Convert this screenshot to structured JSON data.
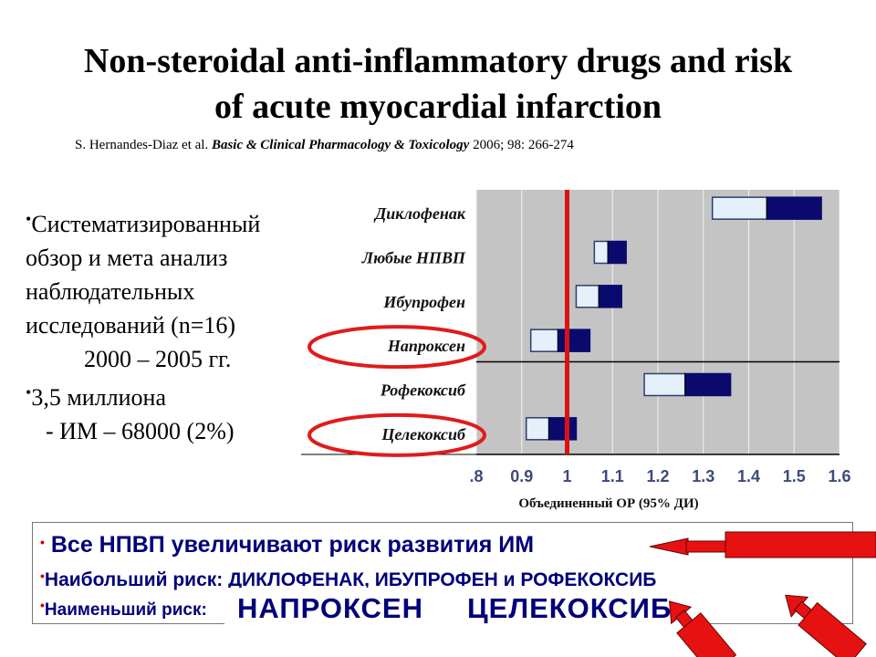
{
  "title_line1": "Non-steroidal anti-inflammatory drugs and risk",
  "title_line2": "of acute myocardial infarction",
  "citation": {
    "authors": "S. Hernandes-Diaz et al.",
    "journal": "Basic & Clinical Pharmacology & Toxicology",
    "details": "2006; 98: 266-274"
  },
  "bullets": {
    "b1_line1": "Систематизированный",
    "b1_line2": "обзор и мета анализ",
    "b1_line3": "наблюдательных",
    "b1_line4": "исследований (n=16)",
    "b1_line5": "2000 – 2005 гг.",
    "b2_line1": "3,5 миллиона",
    "b2_line2": "- ИМ – 68000 (2%)"
  },
  "summary": {
    "line1": "Все НПВП увеличивают риск развития ИМ",
    "line2": "Наибольший риск: ДИКЛОФЕНАК, ИБУПРОФЕН и РОФЕКОКСИБ",
    "line3": "Наименьший риск:",
    "highlight1": "НАПРОКСЕН",
    "highlight2": "ЦЕЛЕКОКСИБ"
  },
  "colors": {
    "ci_light": "#e6f0fa",
    "ci_dark": "#0a0a6e",
    "reference_line": "#dd1111",
    "plot_bg": "#c4c4c4",
    "arrow": "#e61212",
    "text_blue": "#00007a"
  },
  "chart_data": {
    "type": "forest",
    "xlabel": "Объединенный ОР (95% ДИ)",
    "xlim": [
      0.8,
      1.6
    ],
    "xticks": [
      ".8",
      "0.9",
      "1",
      "1.1",
      "1.2",
      "1.3",
      "1.4",
      "1.5",
      "1.6"
    ],
    "reference_value": 1.0,
    "grid": true,
    "rows": [
      {
        "label": "Диклофенак",
        "low": 1.32,
        "point": 1.44,
        "high": 1.56,
        "circled": false
      },
      {
        "label": "Любые НПВП",
        "low": 1.06,
        "point": 1.09,
        "high": 1.13,
        "circled": false
      },
      {
        "label": "Ибупрофен",
        "low": 1.02,
        "point": 1.07,
        "high": 1.12,
        "circled": false
      },
      {
        "label": "Напроксен",
        "low": 0.92,
        "point": 0.98,
        "high": 1.05,
        "circled": true
      },
      {
        "label": "Рофекоксиб",
        "low": 1.17,
        "point": 1.26,
        "high": 1.36,
        "circled": false
      },
      {
        "label": "Целекоксиб",
        "low": 0.91,
        "point": 0.96,
        "high": 1.02,
        "circled": true
      }
    ]
  }
}
